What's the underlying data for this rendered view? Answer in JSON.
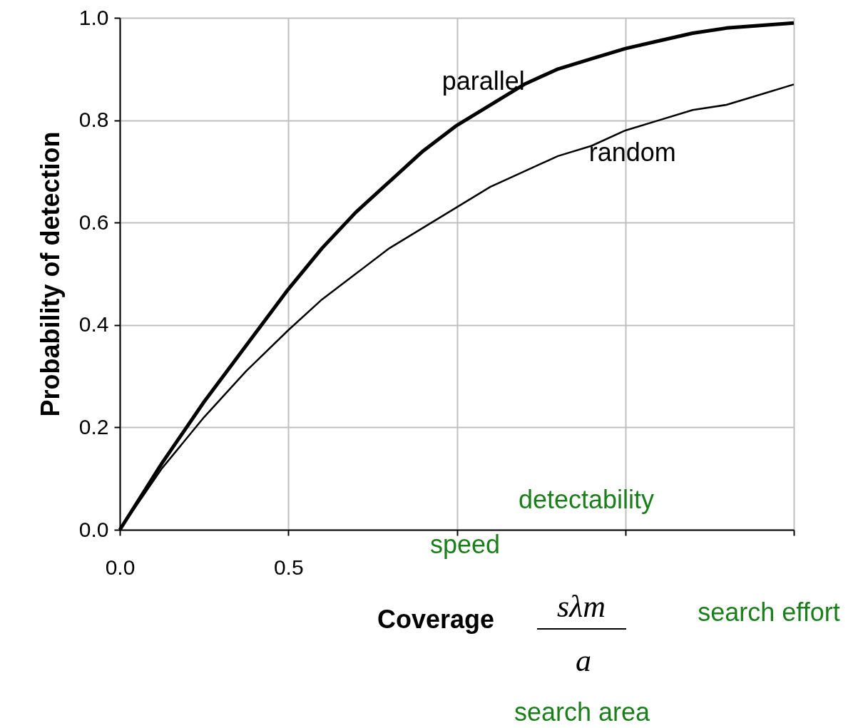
{
  "chart_data": {
    "type": "line",
    "xlabel": "Coverage",
    "ylabel": "Probability of detection",
    "x": [
      0,
      0.125,
      0.25,
      0.375,
      0.5,
      0.6,
      0.7,
      0.8,
      0.9,
      1.0,
      1.1,
      1.2,
      1.3,
      1.4,
      1.5,
      1.6,
      1.7,
      1.8,
      1.9,
      2.0
    ],
    "series": [
      {
        "name": "parallel",
        "color": "#000000",
        "values": [
          0,
          0.13,
          0.25,
          0.36,
          0.47,
          0.55,
          0.62,
          0.68,
          0.74,
          0.79,
          0.83,
          0.87,
          0.9,
          0.92,
          0.94,
          0.955,
          0.97,
          0.98,
          0.985,
          0.99
        ]
      },
      {
        "name": "random",
        "color": "#000000",
        "values": [
          0,
          0.12,
          0.22,
          0.31,
          0.39,
          0.45,
          0.5,
          0.55,
          0.59,
          0.63,
          0.67,
          0.7,
          0.73,
          0.75,
          0.78,
          0.8,
          0.82,
          0.83,
          0.85,
          0.87
        ]
      }
    ],
    "xlim": [
      0,
      2
    ],
    "ylim": [
      0,
      1
    ],
    "xticks": [
      {
        "value": 0,
        "label": "0.0"
      },
      {
        "value": 0.5,
        "label": "0.5"
      },
      {
        "value": 1,
        "label": null
      },
      {
        "value": 1.5,
        "label": null
      },
      {
        "value": 2,
        "label": null
      }
    ],
    "yticks": [
      {
        "value": 0,
        "label": "0.0"
      },
      {
        "value": 0.2,
        "label": "0.2"
      },
      {
        "value": 0.4,
        "label": "0.4"
      },
      {
        "value": 0.6,
        "label": "0.6"
      },
      {
        "value": 0.8,
        "label": "0.8"
      },
      {
        "value": 1,
        "label": "1.0"
      }
    ],
    "grid": true,
    "legend": false,
    "annotations": [
      "sλm",
      "a",
      "speed",
      "detectability",
      "search effort",
      "search area"
    ]
  }
}
